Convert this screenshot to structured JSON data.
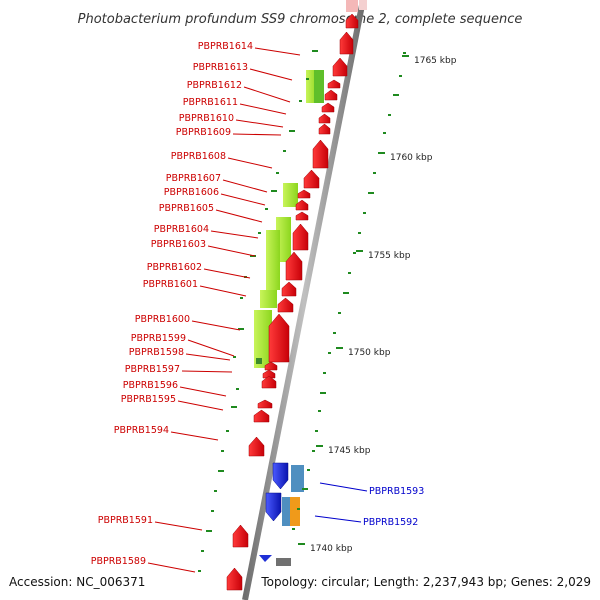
{
  "title": "Photobacterium profundum SS9 chromosome 2, complete sequence",
  "footer": {
    "accession": "Accession: NC_006371",
    "topology": "Topology: circular; Length: 2,237,943 bp; Genes: 2,029"
  },
  "scale_labels": [
    "1765 kbp",
    "1760 kbp",
    "1755 kbp",
    "1750 kbp",
    "1745 kbp",
    "1740 kbp"
  ],
  "left_genes": [
    "PBPRB1614",
    "PBPRB1613",
    "PBPRB1612",
    "PBPRB1611",
    "PBPRB1610",
    "PBPRB1609",
    "PBPRB1608",
    "PBPRB1607",
    "PBPRB1606",
    "PBPRB1605",
    "PBPRB1604",
    "PBPRB1603",
    "PBPRB1602",
    "PBPRB1601",
    "PBPRB1600",
    "PBPRB1599",
    "PBPRB1598",
    "PBPRB1597",
    "PBPRB1596",
    "PBPRB1595",
    "PBPRB1594",
    "PBPRB1591",
    "PBPRB1589"
  ],
  "right_genes": [
    "PBPRB1593",
    "PBPRB1592"
  ],
  "colors": {
    "forward_cds": "#e8111a",
    "reverse_cds": "#1f2fd6",
    "backbone": "#8a8a8a",
    "tick": "#1f8a1f",
    "feature_lime": "#a7e83a",
    "feature_teal": "#4f8fc0",
    "feature_orange": "#f09a1a",
    "feature_gray": "#707070",
    "label_left": "#cc0000",
    "label_right": "#0000cc"
  }
}
